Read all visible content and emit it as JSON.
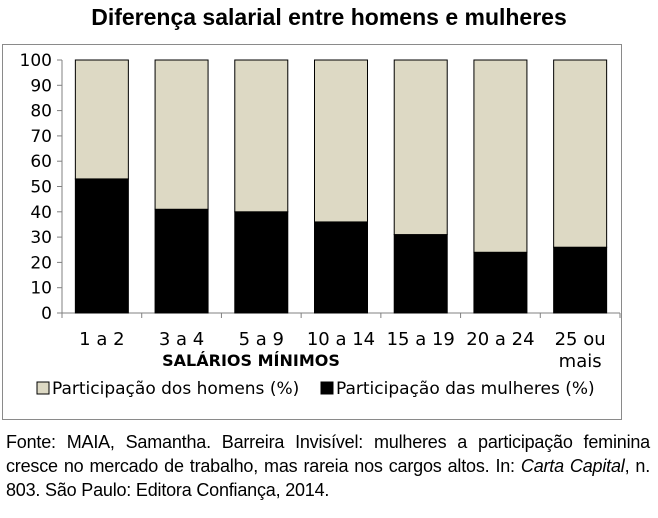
{
  "chart_data": {
    "type": "bar",
    "stacked": true,
    "title": "Diferença salarial entre homens e mulheres",
    "xlabel": "SALÁRIOS MÍNIMOS",
    "ylabel": "",
    "ylim": [
      0,
      100
    ],
    "yticks": [
      "0",
      "10",
      "20",
      "30",
      "40",
      "50",
      "60",
      "70",
      "80",
      "90",
      "100"
    ],
    "categories": [
      [
        "1 a 2"
      ],
      [
        "3 a 4"
      ],
      [
        "5 a 9"
      ],
      [
        "10 a 14"
      ],
      [
        "15 a 19"
      ],
      [
        "20 a 24"
      ],
      [
        "25 ou",
        "mais"
      ]
    ],
    "series": [
      {
        "name": "Participação das mulheres (%)",
        "color": "#000000",
        "values": [
          53,
          41,
          40,
          36,
          31,
          24,
          26
        ]
      },
      {
        "name": "Participação dos homens (%)",
        "color": "#ddd9c4",
        "values": [
          47,
          59,
          60,
          64,
          69,
          76,
          74
        ]
      }
    ],
    "legend": [
      "Participação dos homens (%)",
      "Participação das mulheres (%)"
    ],
    "legend_colors": [
      "#ddd9c4",
      "#000000"
    ],
    "grid": false,
    "legend_position": "bottom"
  },
  "source": {
    "prefix": "Fonte: MAIA, Samantha. Barreira Invisível: mulheres a participação feminina cresce no mercado de trabalho, mas rareia nos cargos altos. In:",
    "journal": "Carta Capital",
    "suffix": ", n. 803. São Paulo: Editora Confiança, 2014."
  }
}
